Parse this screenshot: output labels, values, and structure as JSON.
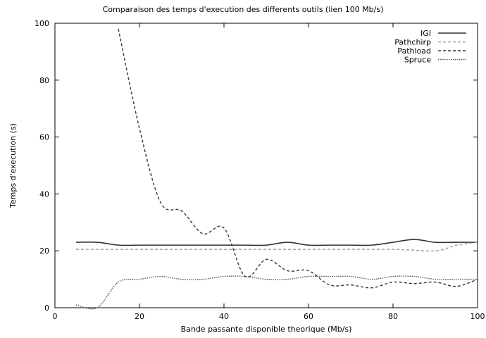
{
  "chart_data": {
    "type": "line",
    "title": "Comparaison des temps d'execution des differents outils (lien 100 Mb/s)",
    "xlabel": "Bande passante disponible theorique (Mb/s)",
    "ylabel": "Temps d'execution (s)",
    "xlim": [
      0,
      100
    ],
    "ylim": [
      0,
      100
    ],
    "xticks": [
      0,
      20,
      40,
      60,
      80,
      100
    ],
    "yticks": [
      0,
      20,
      40,
      60,
      80,
      100
    ],
    "legend_position": "top-right",
    "series": [
      {
        "name": "IGI",
        "color": "#333333",
        "line_style": "solid",
        "points": [
          [
            5,
            23
          ],
          [
            10,
            23
          ],
          [
            15,
            22
          ],
          [
            20,
            22
          ],
          [
            25,
            22
          ],
          [
            30,
            22
          ],
          [
            35,
            22
          ],
          [
            40,
            22
          ],
          [
            45,
            22
          ],
          [
            50,
            22
          ],
          [
            55,
            23
          ],
          [
            60,
            22
          ],
          [
            65,
            22
          ],
          [
            70,
            22
          ],
          [
            75,
            22
          ],
          [
            80,
            23
          ],
          [
            85,
            24
          ],
          [
            90,
            23
          ],
          [
            95,
            23
          ],
          [
            100,
            23
          ]
        ]
      },
      {
        "name": "Pathchirp",
        "color": "#999999",
        "line_style": "dashed",
        "points": [
          [
            5,
            20.5
          ],
          [
            20,
            20.5
          ],
          [
            40,
            20.5
          ],
          [
            60,
            20.5
          ],
          [
            80,
            20.5
          ],
          [
            90,
            20
          ],
          [
            95,
            22
          ],
          [
            100,
            23
          ]
        ]
      },
      {
        "name": "Pathload",
        "color": "#333333",
        "line_style": "dashed",
        "points": [
          [
            15,
            98
          ],
          [
            20,
            63
          ],
          [
            25,
            37
          ],
          [
            30,
            34
          ],
          [
            35,
            26
          ],
          [
            40,
            28
          ],
          [
            45,
            11
          ],
          [
            50,
            17
          ],
          [
            55,
            13
          ],
          [
            60,
            13
          ],
          [
            65,
            8
          ],
          [
            70,
            8
          ],
          [
            75,
            7
          ],
          [
            80,
            9
          ],
          [
            85,
            8.5
          ],
          [
            90,
            9
          ],
          [
            95,
            7.5
          ],
          [
            100,
            10
          ]
        ]
      },
      {
        "name": "Spruce",
        "color": "#555555",
        "line_style": "dotted",
        "points": [
          [
            5,
            1
          ],
          [
            10,
            0
          ],
          [
            15,
            9
          ],
          [
            20,
            10
          ],
          [
            25,
            11
          ],
          [
            30,
            10
          ],
          [
            35,
            10
          ],
          [
            40,
            11
          ],
          [
            45,
            11
          ],
          [
            50,
            10
          ],
          [
            55,
            10
          ],
          [
            60,
            11
          ],
          [
            65,
            11
          ],
          [
            70,
            11
          ],
          [
            75,
            10
          ],
          [
            80,
            11
          ],
          [
            85,
            11
          ],
          [
            90,
            10
          ],
          [
            95,
            10
          ],
          [
            100,
            10
          ]
        ]
      }
    ]
  }
}
